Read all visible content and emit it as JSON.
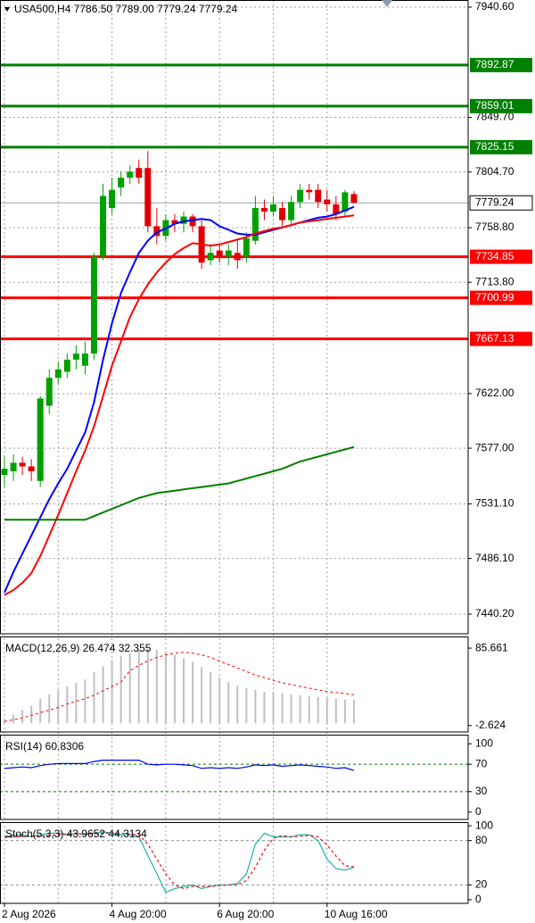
{
  "chart_data": [
    {
      "type": "candlestick",
      "title": "USA500,H4  7786.50 7789.00 7779.24 7779.24",
      "categories": [
        "2 Aug 2026",
        null,
        null,
        null,
        null,
        null,
        null,
        null,
        null,
        null,
        null,
        null,
        "4 Aug 20:00",
        null,
        null,
        null,
        null,
        null,
        null,
        null,
        null,
        null,
        null,
        null,
        "6 Aug 20:00",
        null,
        null,
        null,
        null,
        null,
        null,
        null,
        null,
        null,
        null,
        null,
        "10 Aug 16:00",
        null,
        null,
        null
      ],
      "open": [
        7555,
        7558,
        7565,
        7562,
        7550,
        7612,
        7635,
        7640,
        7650,
        7645,
        7655,
        7735,
        7775,
        7792,
        7800,
        7808,
        7808,
        7760,
        7752,
        7765,
        7762,
        7768,
        7760,
        7732,
        7740,
        7735,
        7738,
        7735,
        7748,
        7775,
        7772,
        7775,
        7765,
        7780,
        7790,
        7790,
        7782,
        7778,
        7772,
        7786.5
      ],
      "high": [
        7570,
        7572,
        7570,
        7568,
        7620,
        7642,
        7648,
        7655,
        7662,
        7665,
        7738,
        7795,
        7800,
        7805,
        7810,
        7815,
        7822,
        7775,
        7770,
        7770,
        7772,
        7770,
        7765,
        7745,
        7745,
        7745,
        7748,
        7755,
        7785,
        7782,
        7785,
        7780,
        7785,
        7795,
        7795,
        7795,
        7790,
        7785,
        7790,
        7789
      ],
      "low": [
        7545,
        7550,
        7555,
        7550,
        7545,
        7605,
        7630,
        7635,
        7642,
        7638,
        7650,
        7732,
        7770,
        7785,
        7795,
        7795,
        7755,
        7745,
        7748,
        7755,
        7755,
        7755,
        7725,
        7728,
        7730,
        7728,
        7725,
        7730,
        7745,
        7765,
        7768,
        7760,
        7762,
        7775,
        7782,
        7775,
        7772,
        7765,
        7768,
        7779.24
      ],
      "close": [
        7560,
        7565,
        7562,
        7558,
        7618,
        7635,
        7642,
        7650,
        7655,
        7655,
        7735,
        7785,
        7790,
        7800,
        7805,
        7800,
        7760,
        7752,
        7765,
        7762,
        7768,
        7760,
        7730,
        7738,
        7735,
        7740,
        7732,
        7750,
        7775,
        7772,
        7778,
        7765,
        7780,
        7790,
        7788,
        7780,
        7778,
        7770,
        7788,
        7779.24
      ],
      "up_color": "#00a000",
      "down_color": "#e00000",
      "series": [
        {
          "color": "#0000ff",
          "values": [
            7458,
            7475,
            7490,
            7505,
            7520,
            7535,
            7548,
            7560,
            7575,
            7590,
            7615,
            7650,
            7680,
            7705,
            7722,
            7738,
            7748,
            7755,
            7758,
            7762,
            7764,
            7765,
            7766,
            7765,
            7760,
            7757,
            7754,
            7753,
            7753,
            7755,
            7757,
            7759,
            7761,
            7763,
            7765,
            7767,
            7768,
            7770,
            7773,
            7776
          ]
        },
        {
          "color": "#ff0000",
          "values": [
            7456,
            7460,
            7466,
            7474,
            7488,
            7505,
            7522,
            7540,
            7558,
            7575,
            7595,
            7620,
            7645,
            7665,
            7685,
            7700,
            7712,
            7722,
            7730,
            7737,
            7742,
            7746,
            7745,
            7744,
            7745,
            7747,
            7749,
            7751,
            7754,
            7756,
            7758,
            7759,
            7761,
            7763,
            7764,
            7765,
            7766,
            7767,
            7768,
            7769
          ]
        },
        {
          "color": "#008000",
          "values": [
            7518,
            7518,
            7518,
            7518,
            7518,
            7518,
            7518,
            7518,
            7518,
            7518,
            7521,
            7524,
            7527,
            7530,
            7533,
            7536,
            7538,
            7540,
            7541,
            7542,
            7543,
            7544,
            7545,
            7546,
            7547,
            7548,
            7550,
            7552,
            7554,
            7556,
            7558,
            7560,
            7563,
            7566,
            7568,
            7570,
            7572,
            7574,
            7576,
            7578
          ]
        }
      ],
      "levels": [
        {
          "value": 7892.87,
          "color": "#008000"
        },
        {
          "value": 7859.01,
          "color": "#008000"
        },
        {
          "value": 7825.15,
          "color": "#008000"
        },
        {
          "value": 7734.85,
          "color": "#ff0000"
        },
        {
          "value": 7700.99,
          "color": "#ff0000"
        },
        {
          "value": 7667.13,
          "color": "#ff0000"
        }
      ],
      "last_price": 7779.24,
      "ylim": [
        7424,
        7946.5
      ],
      "yticks": [
        {
          "value": 7940.6,
          "label": "7940.60"
        },
        {
          "value": 7849.7,
          "label": "7849.70"
        },
        {
          "value": 7804.7,
          "label": "7804.70"
        },
        {
          "value": 7758.8,
          "label": "7758.80"
        },
        {
          "value": 7713.8,
          "label": "7713.80"
        },
        {
          "value": 7622,
          "label": "7622.00"
        },
        {
          "value": 7577,
          "label": "7577.00"
        },
        {
          "value": 7531.1,
          "label": "7531.10"
        },
        {
          "value": 7486.1,
          "label": "7486.10"
        },
        {
          "value": 7440.2,
          "label": "7440.20"
        }
      ],
      "grid": true
    },
    {
      "type": "macd",
      "title": "MACD(12,26,9) 26.474 32.355",
      "values": [
        5,
        10,
        15,
        20,
        28,
        33,
        38,
        42,
        46,
        50,
        58,
        65,
        72,
        77,
        80,
        83,
        85,
        84,
        82,
        78,
        74,
        70,
        64,
        58,
        52,
        47,
        43,
        40,
        38,
        36,
        35,
        34,
        33,
        32,
        31,
        30,
        29,
        28,
        27,
        26.474
      ],
      "color": "#c0c0c0",
      "series": [
        {
          "color": "#ff0000",
          "dash": true,
          "values": [
            2,
            4,
            6,
            9,
            12,
            15,
            18,
            22,
            25,
            28,
            32,
            37,
            42,
            47,
            60,
            66,
            71,
            75,
            78,
            80,
            81,
            80,
            78,
            75,
            71,
            67,
            63,
            59,
            55,
            52,
            49,
            46,
            44,
            42,
            40,
            38,
            36,
            35,
            34,
            32.355
          ]
        }
      ],
      "ylim": [
        -10,
        99
      ],
      "yticks": [
        85.661,
        -2.624
      ]
    },
    {
      "type": "line",
      "title": "RSI(14) 60.8306",
      "series": [
        {
          "color": "#0000ff",
          "values": [
            64,
            65,
            66,
            65,
            68,
            70,
            71,
            71,
            71,
            71,
            74,
            76,
            76,
            76,
            76,
            76,
            70,
            69,
            70,
            70,
            69,
            68,
            64,
            65,
            64,
            65,
            64,
            66,
            69,
            68,
            69,
            67,
            68,
            69,
            68,
            67,
            66,
            64,
            65,
            60.8306
          ]
        }
      ],
      "levels": [
        70,
        30
      ],
      "level_color": "#008000",
      "ylim": [
        -10.7,
        113.3
      ],
      "yticks": [
        100,
        70,
        30,
        0
      ]
    },
    {
      "type": "line",
      "title": "Stoch(5,3,3) 43.9652 44.3134",
      "series": [
        {
          "color": "#20b2aa",
          "values": [
            85,
            87,
            88,
            85,
            88,
            90,
            90,
            88,
            90,
            88,
            90,
            92,
            90,
            88,
            88,
            85,
            60,
            35,
            10,
            15,
            18,
            20,
            15,
            18,
            20,
            20,
            22,
            35,
            75,
            90,
            85,
            85,
            85,
            88,
            88,
            80,
            55,
            42,
            40,
            43.9652
          ]
        },
        {
          "color": "#ff0000",
          "dash": true,
          "values": [
            84,
            85,
            86,
            86,
            86,
            87,
            88,
            89,
            89,
            89,
            89,
            90,
            90,
            90,
            89,
            88,
            75,
            55,
            35,
            20,
            15,
            18,
            18,
            18,
            19,
            20,
            20,
            26,
            44,
            67,
            83,
            87,
            85,
            86,
            87,
            85,
            74,
            59,
            46,
            44.3134
          ]
        }
      ],
      "levels": [
        80,
        20
      ],
      "level_color": "#909090",
      "ylim": [
        -5,
        105
      ],
      "yticks": [
        100,
        80,
        20,
        0
      ]
    }
  ]
}
